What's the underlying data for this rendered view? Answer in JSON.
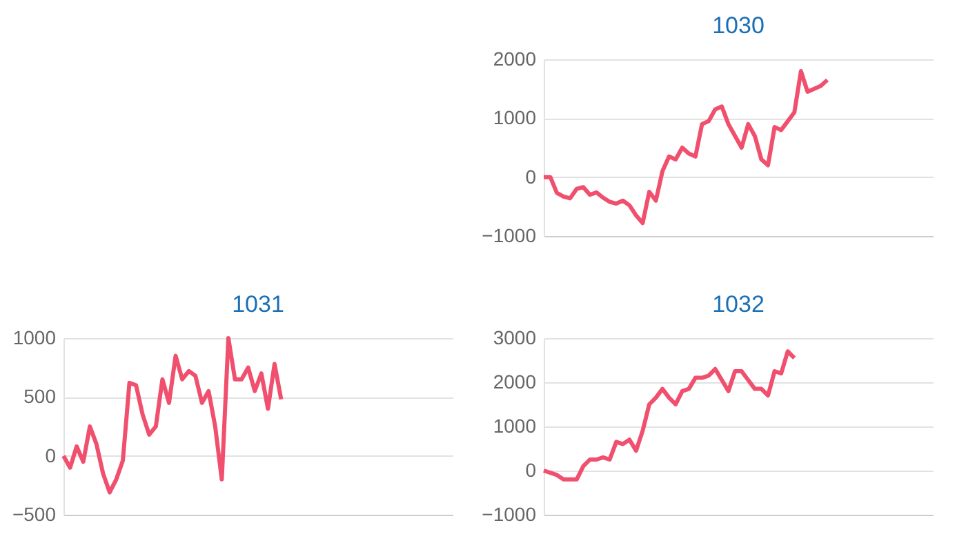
{
  "chart_data": [
    {
      "type": "line",
      "title": "1030",
      "categories": [
        null,
        null,
        null,
        null,
        null,
        null,
        null,
        null,
        null,
        null,
        null,
        null,
        null,
        null,
        null,
        null,
        null,
        null,
        null,
        null,
        null,
        null,
        null,
        null,
        null,
        null,
        null,
        null,
        null,
        null,
        null,
        null,
        null,
        null,
        null,
        null,
        null,
        null,
        null,
        null,
        null,
        null,
        null,
        null,
        null,
        null,
        null,
        null,
        null,
        null,
        null,
        null,
        null,
        null,
        null,
        null,
        null,
        null,
        null,
        null
      ],
      "series": [
        {
          "color": "#f0506e",
          "values": [
            0,
            0,
            -270,
            -330,
            -360,
            -200,
            -170,
            -300,
            -260,
            -350,
            -420,
            -450,
            -400,
            -480,
            -650,
            -780,
            -250,
            -400,
            100,
            350,
            300,
            500,
            400,
            350,
            900,
            950,
            1150,
            1200,
            900,
            700,
            500,
            900,
            700,
            300,
            200,
            850,
            800,
            950,
            1100,
            1800,
            1450,
            1500,
            1550,
            1650,
            null,
            null,
            null,
            null,
            null,
            null,
            null,
            null,
            null,
            null,
            null,
            null,
            null,
            null,
            null,
            null
          ]
        }
      ],
      "ylim": [
        -1000,
        2000
      ],
      "yticks": [
        -1000,
        0,
        1000,
        2000
      ],
      "grid": "y",
      "tick_labels": "y",
      "marker": "none"
    },
    {
      "type": "line",
      "title": "1031",
      "categories": [
        null,
        null,
        null,
        null,
        null,
        null,
        null,
        null,
        null,
        null,
        null,
        null,
        null,
        null,
        null,
        null,
        null,
        null,
        null,
        null,
        null,
        null,
        null,
        null,
        null,
        null,
        null,
        null,
        null,
        null,
        null,
        null,
        null,
        null,
        null,
        null,
        null,
        null,
        null,
        null,
        null,
        null,
        null,
        null,
        null,
        null,
        null,
        null,
        null,
        null,
        null,
        null,
        null,
        null,
        null,
        null,
        null,
        null,
        null,
        null
      ],
      "series": [
        {
          "color": "#f0506e",
          "values": [
            0,
            -100,
            80,
            -50,
            250,
            100,
            -150,
            -310,
            -200,
            -40,
            620,
            600,
            350,
            180,
            250,
            650,
            450,
            850,
            650,
            720,
            680,
            450,
            550,
            250,
            -200,
            1000,
            650,
            650,
            750,
            550,
            700,
            400,
            780,
            480,
            null,
            null,
            null,
            null,
            null,
            null,
            null,
            null,
            null,
            null,
            null,
            null,
            null,
            null,
            null,
            null,
            null,
            null,
            null,
            null,
            null,
            null,
            null,
            null,
            null,
            null
          ]
        }
      ],
      "ylim": [
        -500,
        1000
      ],
      "yticks": [
        -500,
        0,
        500,
        1000
      ],
      "grid": "y",
      "tick_labels": "y",
      "marker": "none"
    },
    {
      "type": "line",
      "title": "1032",
      "categories": [
        null,
        null,
        null,
        null,
        null,
        null,
        null,
        null,
        null,
        null,
        null,
        null,
        null,
        null,
        null,
        null,
        null,
        null,
        null,
        null,
        null,
        null,
        null,
        null,
        null,
        null,
        null,
        null,
        null,
        null,
        null,
        null,
        null,
        null,
        null,
        null,
        null,
        null,
        null,
        null,
        null,
        null,
        null,
        null,
        null,
        null,
        null,
        null,
        null,
        null,
        null,
        null,
        null,
        null,
        null,
        null,
        null,
        null,
        null,
        null
      ],
      "series": [
        {
          "color": "#f0506e",
          "values": [
            0,
            -50,
            -100,
            -200,
            -200,
            -200,
            100,
            250,
            250,
            300,
            250,
            650,
            600,
            700,
            450,
            900,
            1500,
            1650,
            1850,
            1650,
            1500,
            1800,
            1850,
            2100,
            2100,
            2150,
            2300,
            2050,
            1800,
            2250,
            2250,
            2050,
            1850,
            1850,
            1700,
            2250,
            2200,
            2700,
            2550,
            null,
            null,
            null,
            null,
            null,
            null,
            null,
            null,
            null,
            null,
            null,
            null,
            null,
            null,
            null,
            null,
            null,
            null,
            null,
            null,
            null
          ]
        }
      ],
      "ylim": [
        -1000,
        3000
      ],
      "yticks": [
        -1000,
        0,
        1000,
        2000,
        3000
      ],
      "grid": "y",
      "tick_labels": "y",
      "marker": "none"
    }
  ]
}
